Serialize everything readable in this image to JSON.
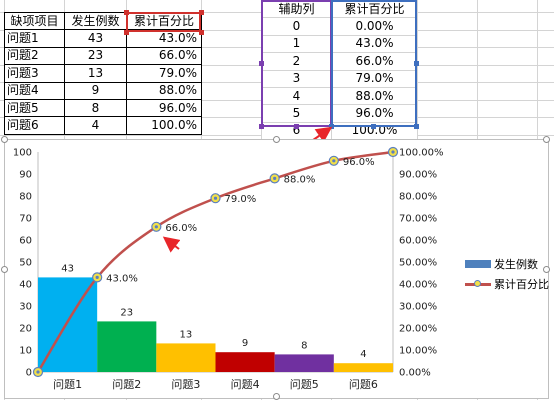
{
  "left_table": {
    "headers": [
      "缺项项目",
      "发生例数",
      "累计百分比"
    ],
    "rows": [
      {
        "name": "问题1",
        "count": "43",
        "pct": "43.0%"
      },
      {
        "name": "问题2",
        "count": "23",
        "pct": "66.0%"
      },
      {
        "name": "问题3",
        "count": "13",
        "pct": "79.0%"
      },
      {
        "name": "问题4",
        "count": "9",
        "pct": "88.0%"
      },
      {
        "name": "问题5",
        "count": "8",
        "pct": "96.0%"
      },
      {
        "name": "问题6",
        "count": "4",
        "pct": "100.0%"
      }
    ]
  },
  "right_table": {
    "headers": [
      "辅助列",
      "累计百分比"
    ],
    "rows": [
      {
        "aux": "0",
        "pct": "0.00%"
      },
      {
        "aux": "1",
        "pct": "43.0%"
      },
      {
        "aux": "2",
        "pct": "66.0%"
      },
      {
        "aux": "3",
        "pct": "79.0%"
      },
      {
        "aux": "4",
        "pct": "88.0%"
      },
      {
        "aux": "5",
        "pct": "96.0%"
      },
      {
        "aux": "6",
        "pct": "100.0%"
      }
    ]
  },
  "colors": {
    "selection_red": "#d0312d",
    "selection_purple": "#7b3fb0",
    "selection_blue": "#3e6fbf",
    "line": "#c0504d",
    "marker_fill": "#f2e04a",
    "arrow": "#e8262a"
  },
  "chart_data": {
    "type": "bar",
    "categories": [
      "问题1",
      "问题2",
      "问题3",
      "问题4",
      "问题5",
      "问题6"
    ],
    "bar_series": {
      "name": "发生例数",
      "values": [
        43,
        23,
        13,
        9,
        8,
        4
      ],
      "colors": [
        "#00b0f0",
        "#00b050",
        "#ffc000",
        "#c00000",
        "#7030a0",
        "#ffc000"
      ]
    },
    "line_series": {
      "name": "累计百分比",
      "x": [
        0,
        1,
        2,
        3,
        4,
        5,
        6
      ],
      "values": [
        0,
        43,
        66,
        79,
        88,
        96,
        100
      ],
      "labels": [
        "",
        "43.0%",
        "66.0%",
        "79.0%",
        "88.0%",
        "96.0%",
        ""
      ]
    },
    "left_axis": {
      "min": 0,
      "max": 100,
      "ticks": [
        "0",
        "10",
        "20",
        "30",
        "40",
        "50",
        "60",
        "70",
        "80",
        "90",
        "100"
      ]
    },
    "right_axis": {
      "ticks": [
        "0.00%",
        "10.00%",
        "20.00%",
        "30.00%",
        "40.00%",
        "50.00%",
        "60.00%",
        "70.00%",
        "80.00%",
        "90.00%",
        "100.00%"
      ]
    },
    "legend": {
      "placement": "right",
      "entries": [
        "发生例数",
        "累计百分比"
      ]
    },
    "grid": false
  }
}
